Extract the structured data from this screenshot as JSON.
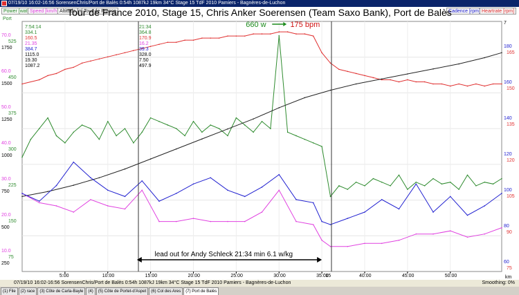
{
  "window": {
    "title": "07/19/10 16:02-16:56 SorensenChris/Port de Balès 0:54h 1087kJ 19km 34°C Stage 15 TdF 2010 Pamiers - Bagnères-de-Luchon"
  },
  "legend": {
    "left": [
      "Power [watt]",
      "Speed [km/h]",
      "Altitude [m]",
      "Tour de France"
    ],
    "right": [
      "Cadence [rpm]",
      "Heartrate [rpm]"
    ]
  },
  "colors": {
    "power": "#2e8b2e",
    "speed": "#e040e0",
    "altitude": "#222222",
    "cadence": "#2020d0",
    "heartrate": "#e03030",
    "annotation_power": "#1a8a1a",
    "annotation_hr": "#d01010"
  },
  "chart_data": {
    "type": "line",
    "title": "Tour de France 2010, Stage 15, Chris Anker Soerensen (Team Saxo Bank), Port de Balès",
    "x_unit": "min",
    "x_ticks": [
      "5:00",
      "10:00",
      "15:00",
      "20:00",
      "25:00",
      "30:00",
      "35:00",
      "40:00",
      "45:00",
      "50:00"
    ],
    "x_range_min": [
      0,
      56
    ],
    "axis_labels": {
      "left_top": "Port",
      "right_top": "7",
      "right_bottom": "km",
      "x_end": "'15"
    },
    "left_axis_columns": {
      "speed": [
        "70.0",
        "60.0",
        "50.0",
        "40.0",
        "30.0",
        "20.0",
        "10.0"
      ],
      "power": [
        "525",
        "450",
        "375",
        "300",
        "225",
        "150",
        "75"
      ],
      "altitude": [
        "1750",
        "1500",
        "1250",
        "1000",
        "750",
        "500",
        "250"
      ]
    },
    "right_axis_columns": {
      "cadence": [
        "180",
        "160",
        "140",
        "120",
        "100",
        "80",
        "60"
      ],
      "heartrate": [
        "165",
        "150",
        "135",
        "120",
        "105",
        "90",
        "75"
      ]
    },
    "series": [
      {
        "name": "Heartrate [rpm]",
        "unit": "bpm",
        "x": [
          0,
          2,
          3,
          4,
          5,
          6,
          7,
          8,
          9,
          10,
          11,
          12,
          13,
          14,
          15,
          16,
          17,
          18,
          19,
          20,
          21,
          22,
          23,
          24,
          25,
          26,
          27,
          28,
          29,
          30,
          31,
          32,
          33,
          34,
          35,
          36,
          37,
          38,
          39,
          40,
          41,
          42,
          43,
          44,
          45,
          46,
          47,
          48,
          49,
          50,
          51,
          52,
          53,
          54,
          55,
          56
        ],
        "values": [
          150,
          152,
          154,
          155,
          157,
          158,
          160,
          161,
          162,
          163,
          164,
          165,
          166,
          167,
          168,
          169,
          170,
          170,
          171,
          171,
          172,
          172,
          172,
          173,
          173,
          173,
          174,
          174,
          174,
          175,
          175,
          174,
          174,
          173,
          165,
          160,
          157,
          156,
          155,
          154,
          153,
          152,
          152,
          151,
          152,
          151,
          151,
          150,
          150,
          149,
          150,
          149,
          150,
          149,
          150,
          150
        ]
      },
      {
        "name": "Power [watt]",
        "unit": "w",
        "x": [
          0,
          1,
          2,
          3,
          4,
          5,
          6,
          7,
          8,
          9,
          10,
          11,
          12,
          13,
          14,
          15,
          16,
          17,
          18,
          19,
          20,
          21,
          22,
          23,
          24,
          25,
          26,
          27,
          28,
          29,
          30,
          31,
          32,
          33,
          34,
          35,
          36,
          37,
          38,
          39,
          40,
          41,
          42,
          43,
          44,
          45,
          46,
          47,
          48,
          49,
          50,
          51,
          52,
          53,
          54,
          55,
          56
        ],
        "values": [
          320,
          370,
          400,
          430,
          380,
          360,
          390,
          410,
          400,
          370,
          420,
          380,
          400,
          360,
          390,
          430,
          420,
          410,
          400,
          380,
          420,
          390,
          410,
          400,
          380,
          430,
          410,
          390,
          420,
          400,
          660,
          390,
          380,
          370,
          360,
          350,
          210,
          240,
          230,
          250,
          240,
          260,
          250,
          240,
          270,
          230,
          250,
          240,
          260,
          245,
          250,
          230,
          270,
          240,
          250,
          245,
          260
        ]
      },
      {
        "name": "Altitude [m]",
        "unit": "m",
        "x": [
          0,
          3,
          6,
          9,
          12,
          15,
          18,
          21,
          24,
          27,
          30,
          33,
          36,
          39,
          42,
          45,
          48,
          51,
          54,
          56
        ],
        "values": [
          600,
          640,
          690,
          750,
          820,
          900,
          980,
          1060,
          1140,
          1220,
          1310,
          1390,
          1450,
          1500,
          1540,
          1580,
          1620,
          1660,
          1710,
          1750
        ]
      },
      {
        "name": "Speed [km/h]",
        "unit": "km/h",
        "x": [
          0,
          2,
          4,
          6,
          8,
          10,
          12,
          14,
          16,
          18,
          20,
          22,
          24,
          26,
          28,
          30,
          32,
          34,
          35,
          36,
          38,
          40,
          42,
          44,
          46,
          48,
          50,
          52,
          54,
          56
        ],
        "values": [
          25,
          22,
          21,
          19,
          23,
          21,
          20,
          26,
          16,
          16,
          17,
          16,
          16,
          16,
          19,
          26,
          16,
          15,
          10,
          8,
          8,
          9,
          9,
          10,
          12,
          12,
          13,
          11,
          12,
          14
        ]
      },
      {
        "name": "Cadence [rpm]",
        "unit": "rpm",
        "x": [
          0,
          2,
          4,
          6,
          8,
          10,
          12,
          14,
          16,
          18,
          20,
          22,
          24,
          26,
          28,
          30,
          32,
          34,
          35,
          36,
          38,
          40,
          42,
          44,
          46,
          48,
          50,
          52,
          54,
          56
        ],
        "values": [
          90,
          85,
          95,
          110,
          100,
          92,
          88,
          98,
          85,
          90,
          96,
          100,
          92,
          88,
          94,
          102,
          86,
          84,
          72,
          70,
          74,
          78,
          86,
          80,
          96,
          78,
          88,
          76,
          82,
          90
        ]
      }
    ],
    "annotations": [
      {
        "text": "660 w",
        "at_min": 30.0
      },
      {
        "text": "175 bpm",
        "at_min": 30.5
      },
      {
        "text": "lead out for Andy Schleck 21:34 min 6.1 w/kg",
        "from_min": 13.4,
        "to_min": 35.0
      }
    ],
    "selection_stats": {
      "cursor_left": [
        "7:54:14",
        "334.1",
        "160.5",
        "21.35",
        "384.7",
        "1115.0",
        "19.30",
        "1087.2"
      ],
      "cursor_right": [
        "21:34",
        "364.8",
        "170.9",
        "16.2",
        "39.3",
        "328.0",
        "7.50",
        "497.9"
      ]
    }
  },
  "statusbar": {
    "text": "07/19/10 16:02-16:56 SorensenChris/Port de Balès 0:54h 1087kJ 19km 34°C Stage 15 TdF 2010 Pamiers - Bagnères-de-Luchon",
    "smoothing": "Smoothing: 0%"
  },
  "tabs": [
    "(1) File",
    "(2) race",
    "(3) Côte de Carla-Bayle",
    "(4)",
    "(5) Côte de Portet-d'Aspet",
    "(6) Col des Ares",
    "(7) Port de Balès"
  ]
}
